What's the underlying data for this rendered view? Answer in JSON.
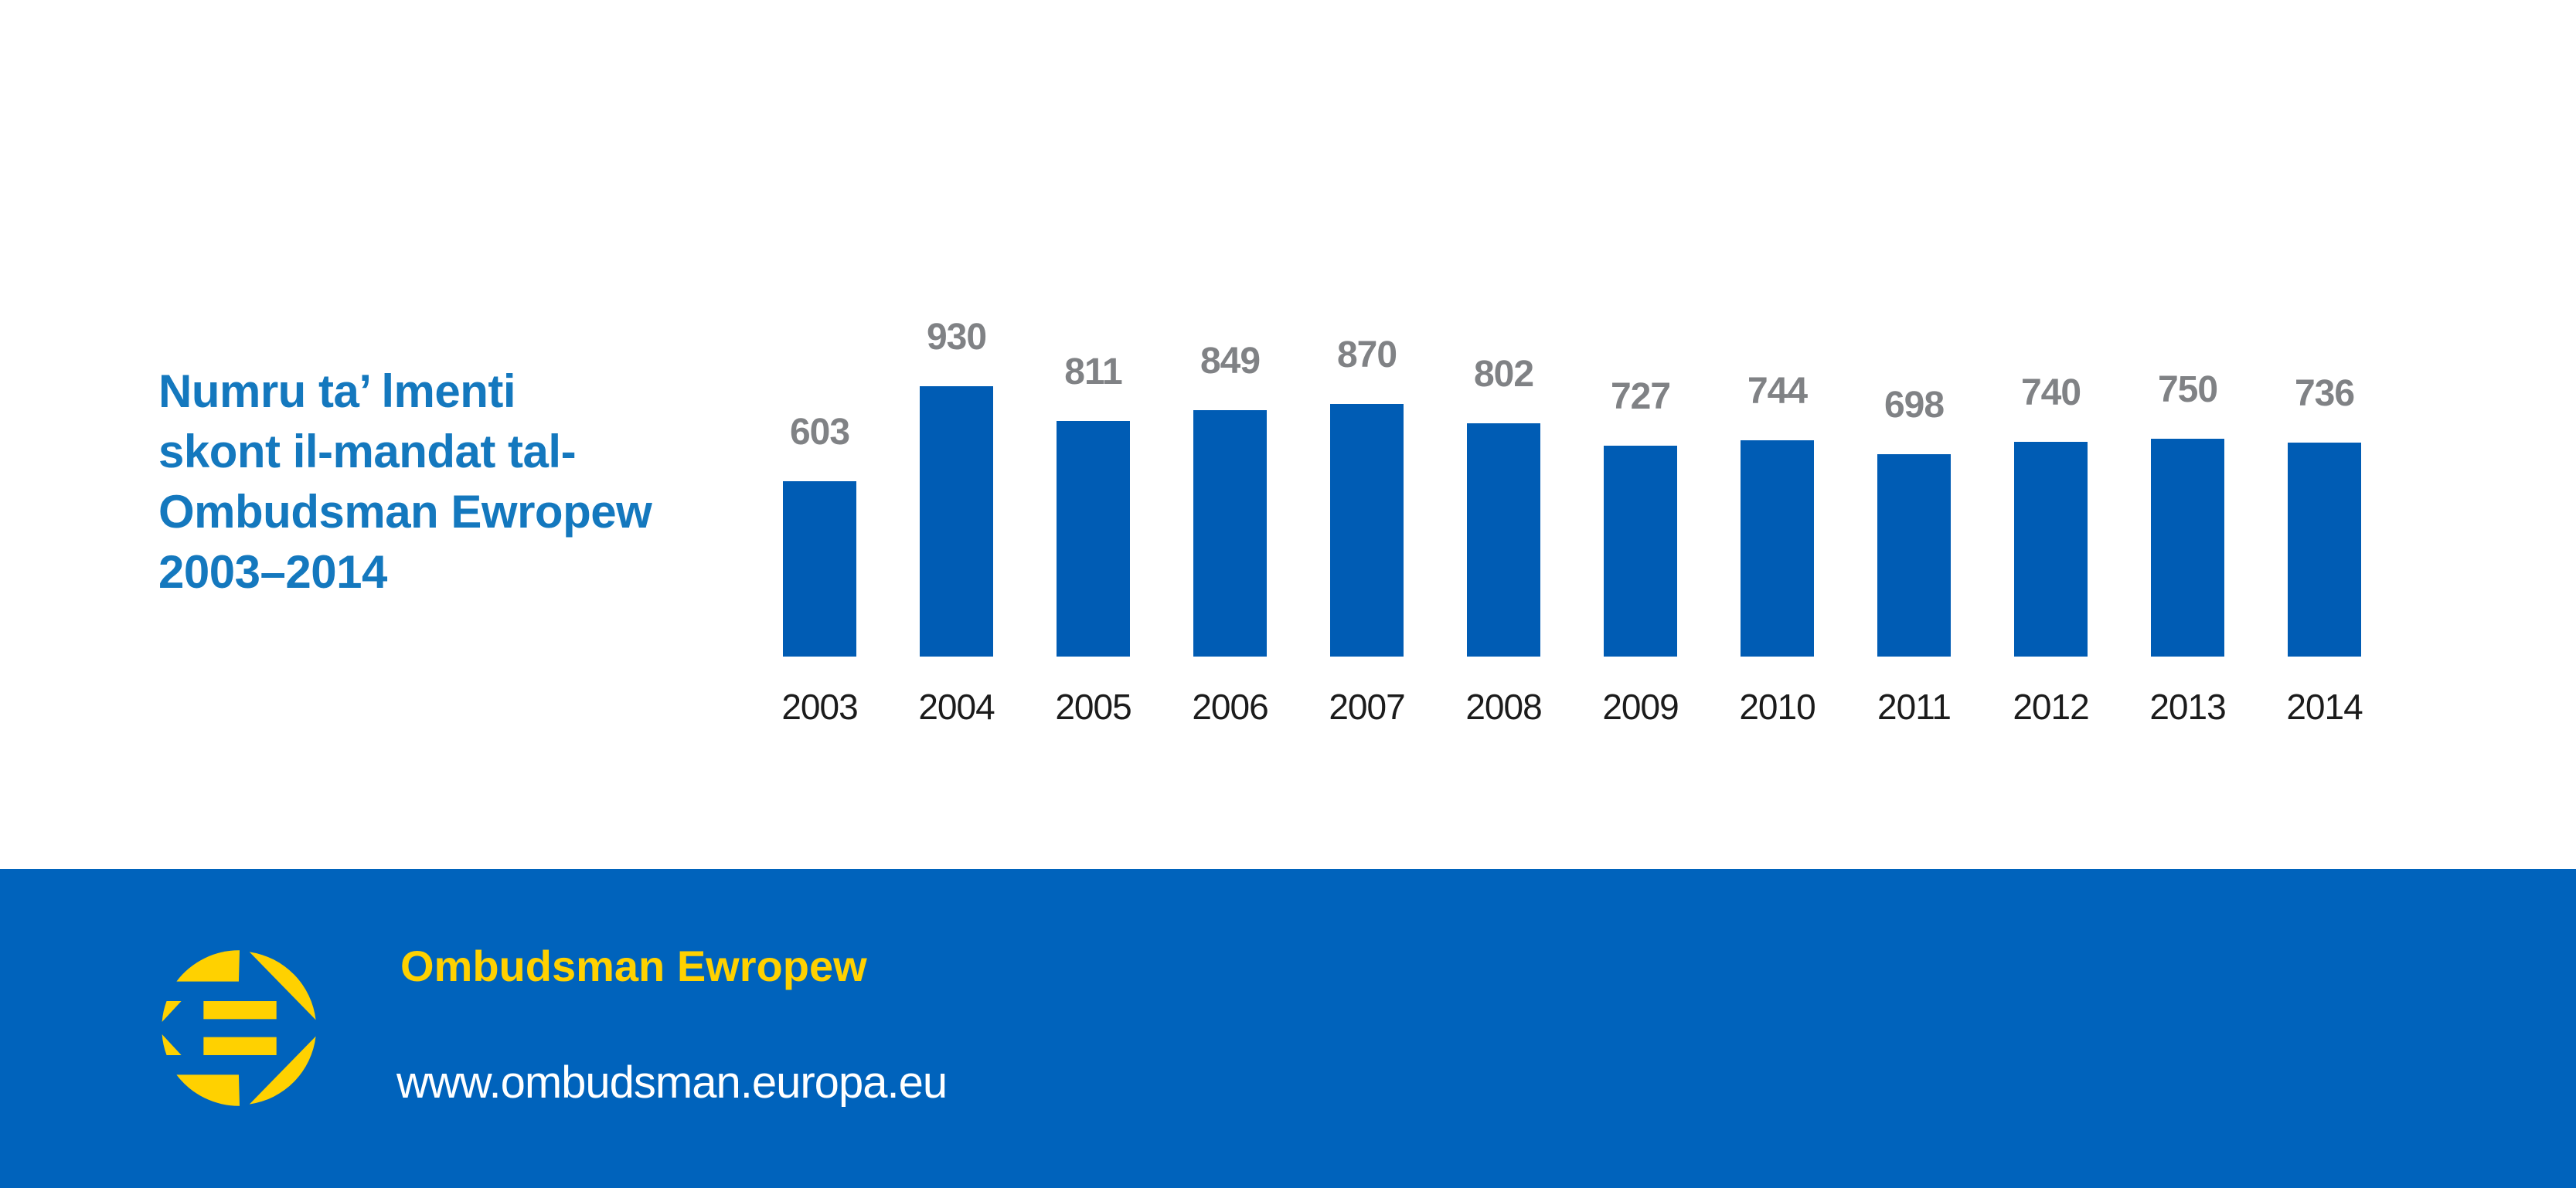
{
  "title": {
    "text": "Numru ta’ lmenti\nskont il-mandat tal-\nOmbudsman Ewropew\n2003–2014"
  },
  "chart_data": {
    "type": "bar",
    "title": "Numru ta’ lmenti skont il-mandat tal-Ombudsman Ewropew 2003–2014",
    "categories": [
      "2003",
      "2004",
      "2005",
      "2006",
      "2007",
      "2008",
      "2009",
      "2010",
      "2011",
      "2012",
      "2013",
      "2014"
    ],
    "values": [
      603,
      930,
      811,
      849,
      870,
      802,
      727,
      744,
      698,
      740,
      750,
      736
    ],
    "xlabel": "",
    "ylabel": "",
    "ylim": [
      0,
      930
    ],
    "grid": false,
    "axes_visible": false,
    "value_labels": "above bars",
    "legend": "none"
  },
  "footer": {
    "org_name": "Ombudsman Ewropew",
    "url": "www.ombudsman.europa.eu",
    "logo": "european-ombudsman-logo"
  },
  "colors": {
    "bar_blue": "#005CB4",
    "footer_blue": "#0063BC",
    "title_blue": "#1478BE",
    "value_gray": "#808285",
    "year_black": "#1B1B1B",
    "logo_yellow": "#FFD100"
  }
}
